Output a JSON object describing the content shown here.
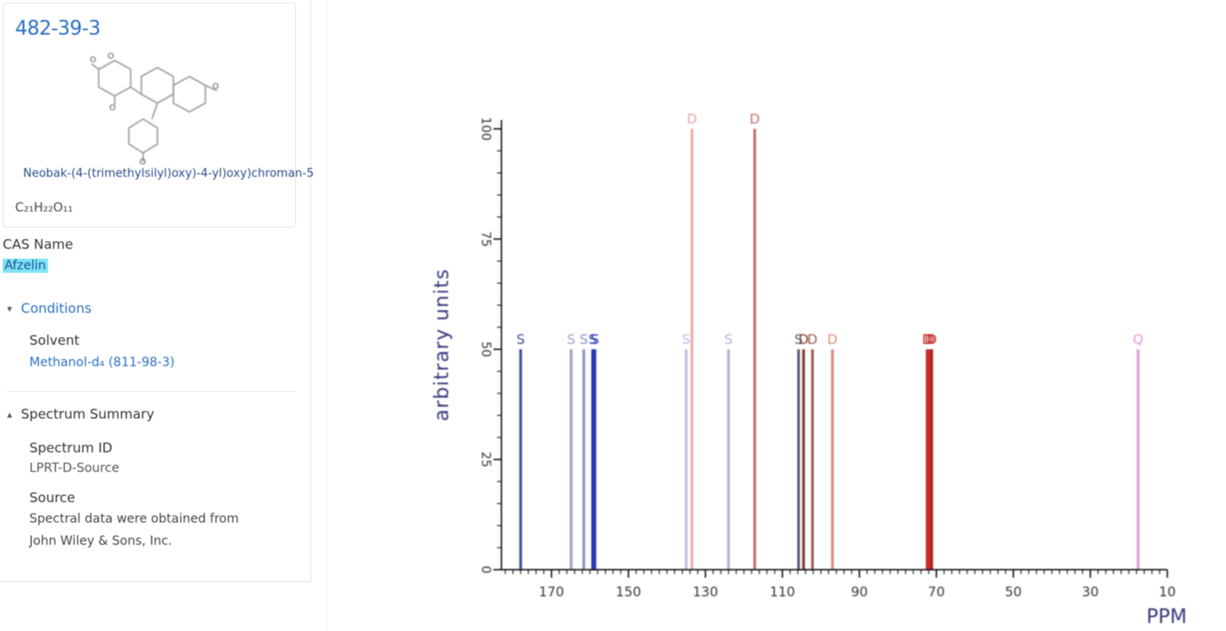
{
  "compound": {
    "cas_number": "482-39-3",
    "chemical_name": "Neobak-(4-(trimethylsilyl)oxy)-4-yl)oxy)chroman-5",
    "formula_main": "C₂₁H₂₂O₁₁",
    "formula_display": "C₂₁H₂₂O₁₁"
  },
  "cas_name": {
    "label": "CAS Name",
    "value": "Afzelin"
  },
  "conditions": {
    "header": "Conditions",
    "solvent_label": "Solvent",
    "solvent_value": "Methanol-d₄ (811-98-3)"
  },
  "spectrum_summary": {
    "header": "Spectrum Summary",
    "spectrum_id_label": "Spectrum ID",
    "spectrum_id_value": "LPRT-D-Source",
    "source_label": "Source",
    "source_line1": "Spectral data were obtained from",
    "source_line2": "John Wiley & Sons, Inc."
  },
  "colors": {
    "link": "#2a6fc0",
    "highlight": "#7fe3f3",
    "axis": "#000000",
    "ylabel": "#33367a"
  },
  "chart_data": {
    "type": "bar",
    "xlabel": "PPM",
    "ylabel": "arbitrary units",
    "xlim": [
      183,
      10
    ],
    "ylim": [
      0,
      100
    ],
    "x_ticks": [
      170,
      150,
      130,
      110,
      90,
      70,
      50,
      30,
      10
    ],
    "y_ticks": [
      0,
      25,
      50,
      75,
      100
    ],
    "grid": false,
    "peaks": [
      {
        "ppm": 178.0,
        "intensity": 50,
        "label": "S",
        "color": "#3f4a8c"
      },
      {
        "ppm": 164.9,
        "intensity": 50,
        "label": "S",
        "color": "#9aa0cc"
      },
      {
        "ppm": 161.6,
        "intensity": 50,
        "label": "S",
        "color": "#8a90c6"
      },
      {
        "ppm": 159.3,
        "intensity": 50,
        "label": "S",
        "color": "#2437b0"
      },
      {
        "ppm": 158.7,
        "intensity": 50,
        "label": "S",
        "color": "#2a3cb8"
      },
      {
        "ppm": 135.0,
        "intensity": 50,
        "label": "S",
        "color": "#b9bde0"
      },
      {
        "ppm": 133.5,
        "intensity": 100,
        "label": "D",
        "color": "#e8a8a8"
      },
      {
        "ppm": 124.0,
        "intensity": 50,
        "label": "S",
        "color": "#aab0d8"
      },
      {
        "ppm": 117.2,
        "intensity": 100,
        "label": "D",
        "color": "#c36a6a"
      },
      {
        "ppm": 105.8,
        "intensity": 50,
        "label": "S",
        "color": "#55557a"
      },
      {
        "ppm": 104.5,
        "intensity": 50,
        "label": "D",
        "color": "#7a3a2a"
      },
      {
        "ppm": 102.2,
        "intensity": 50,
        "label": "D",
        "color": "#9b5b4b"
      },
      {
        "ppm": 97.0,
        "intensity": 50,
        "label": "D",
        "color": "#d88a7a"
      },
      {
        "ppm": 72.4,
        "intensity": 50,
        "label": "D",
        "color": "#c4302e"
      },
      {
        "ppm": 71.8,
        "intensity": 50,
        "label": "D",
        "color": "#c42a2a"
      },
      {
        "ppm": 71.2,
        "intensity": 50,
        "label": "D",
        "color": "#b82020"
      },
      {
        "ppm": 17.6,
        "intensity": 50,
        "label": "Q",
        "color": "#e49ad8"
      }
    ]
  }
}
